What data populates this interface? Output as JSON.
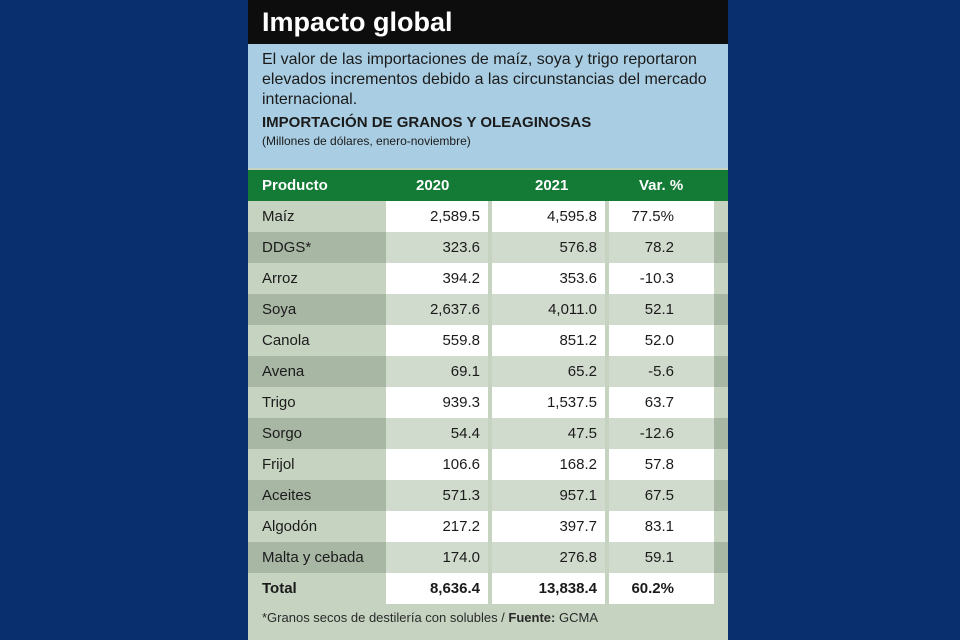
{
  "header": {
    "title": "Impacto global"
  },
  "intro": {
    "description": "El valor de las importaciones de maíz, soya y trigo reportaron elevados incrementos debido a las circunstancias del mercado internacional.",
    "table_title": "IMPORTACIÓN DE GRANOS Y OLEAGINOSAS",
    "table_subtitle": "(Millones de dólares, enero-noviembre)"
  },
  "table": {
    "headers": [
      "Producto",
      "2020",
      "2021",
      "Var. %"
    ],
    "rows": [
      [
        "Maíz",
        "2,589.5",
        "4,595.8",
        "77.5%"
      ],
      [
        "DDGS*",
        "323.6",
        "576.8",
        "78.2"
      ],
      [
        "Arroz",
        "394.2",
        "353.6",
        "-10.3"
      ],
      [
        "Soya",
        "2,637.6",
        "4,011.0",
        "52.1"
      ],
      [
        "Canola",
        "559.8",
        "851.2",
        "52.0"
      ],
      [
        "Avena",
        "69.1",
        "65.2",
        "-5.6"
      ],
      [
        "Trigo",
        "939.3",
        "1,537.5",
        "63.7"
      ],
      [
        "Sorgo",
        "54.4",
        "47.5",
        "-12.6"
      ],
      [
        "Frijol",
        "106.6",
        "168.2",
        "57.8"
      ],
      [
        "Aceites",
        "571.3",
        "957.1",
        "67.5"
      ],
      [
        "Algodón",
        "217.2",
        "397.7",
        "83.1"
      ],
      [
        "Malta y cebada",
        "174.0",
        "276.8",
        "59.1"
      ]
    ],
    "total": [
      "Total",
      "8,636.4",
      "13,838.4",
      "60.2%"
    ]
  },
  "footer": {
    "note": "*Granos secos de destilería con solubles / ",
    "source_label": "Fuente:",
    "source": " GCMA"
  }
}
